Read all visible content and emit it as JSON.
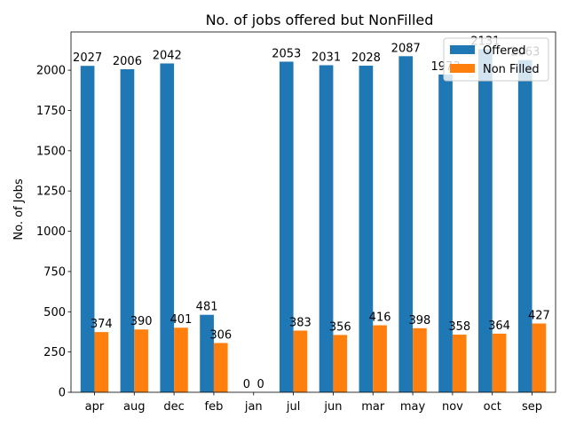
{
  "chart_data": {
    "type": "bar",
    "title": "No. of jobs offered but NonFilled",
    "xlabel": "",
    "ylabel": "No. of Jobs",
    "categories": [
      "apr",
      "aug",
      "dec",
      "feb",
      "jan",
      "jul",
      "jun",
      "mar",
      "may",
      "nov",
      "oct",
      "sep"
    ],
    "series": [
      {
        "name": "Offered",
        "color": "#1f77b4",
        "values": [
          2027,
          2006,
          2042,
          481,
          0,
          2053,
          2031,
          2028,
          2087,
          1973,
          2131,
          2063
        ]
      },
      {
        "name": "Non Filled",
        "color": "#ff7f0e",
        "values": [
          374,
          390,
          401,
          306,
          0,
          383,
          356,
          416,
          398,
          358,
          364,
          427
        ]
      }
    ],
    "data_labels": {
      "Offered": [
        "2027",
        "2006",
        "2042",
        "481",
        "0",
        "2053",
        "2031",
        "2028",
        "2087",
        "1973",
        "2131",
        "2063"
      ],
      "Non Filled": [
        "374",
        "390",
        "401",
        "306",
        "0",
        "383",
        "356",
        "416",
        "398",
        "358",
        "364",
        "427"
      ]
    },
    "ylim": [
      0,
      2237.55
    ],
    "yticks": [
      0,
      250,
      500,
      750,
      1000,
      1250,
      1500,
      1750,
      2000
    ],
    "ytick_labels": [
      "0",
      "250",
      "500",
      "750",
      "1000",
      "1250",
      "1500",
      "1750",
      "2000"
    ],
    "legend_position": "top-right",
    "grid": false
  }
}
